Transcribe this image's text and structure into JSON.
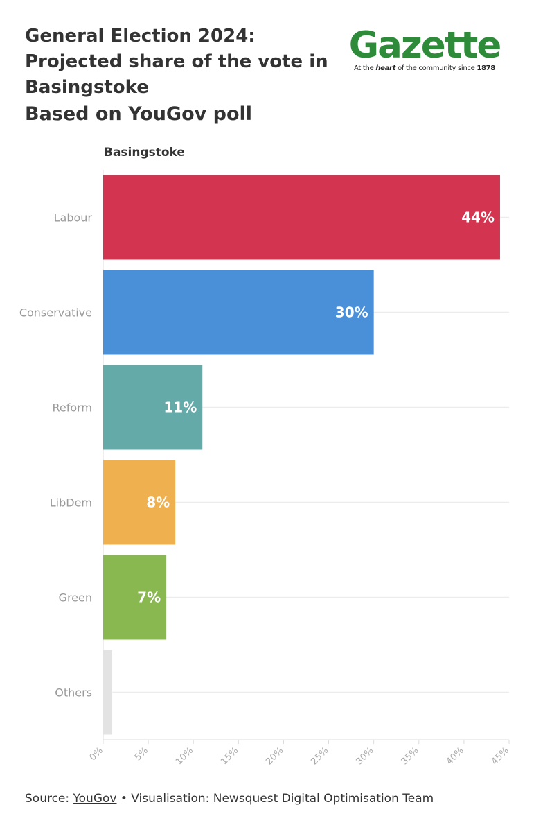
{
  "header": {
    "title": "General Election 2024: Projected share of the vote in Basingstoke",
    "subtitle": "Based on YouGov poll"
  },
  "logo": {
    "word": "Gazette",
    "tagline_pre": "At the ",
    "tagline_em": "heart",
    "tagline_mid": " of the community since ",
    "tagline_year": "1878",
    "color": "#2e8b3a"
  },
  "chart_label": "Basingstoke",
  "chart_data": {
    "type": "bar",
    "orientation": "horizontal",
    "categories": [
      "Labour",
      "Conservative",
      "Reform",
      "LibDem",
      "Green",
      "Others"
    ],
    "values": [
      44,
      30,
      11,
      8,
      7,
      1
    ],
    "data_labels": [
      "44%",
      "30%",
      "11%",
      "8%",
      "7%",
      ""
    ],
    "colors": [
      "#d3344f",
      "#4a90d9",
      "#63aaa9",
      "#efb050",
      "#88b84f",
      "#e3e3e3"
    ],
    "xlim": [
      0,
      45
    ],
    "xticks": [
      0,
      5,
      10,
      15,
      20,
      25,
      30,
      35,
      40,
      45
    ],
    "xtick_labels": [
      "0%",
      "5%",
      "10%",
      "15%",
      "20%",
      "25%",
      "30%",
      "35%",
      "40%",
      "45%"
    ],
    "grid": true
  },
  "footer": {
    "source_prefix": "Source: ",
    "source_link": "YouGov",
    "source_suffix": " • Visualisation: Newsquest Digital Optimisation Team"
  }
}
